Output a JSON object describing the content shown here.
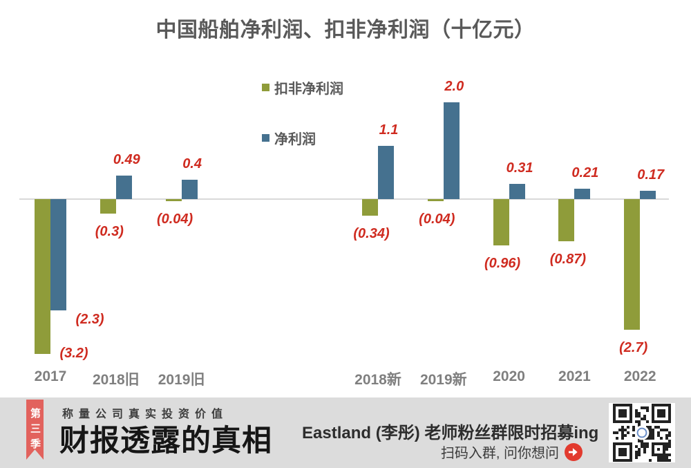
{
  "chart_data": {
    "type": "bar",
    "title": "中国船舶净利润、扣非净利润（十亿元）",
    "categories": [
      "2017",
      "2018旧",
      "2019旧",
      "2018新",
      "2019新",
      "2020",
      "2021",
      "2022"
    ],
    "slots": [
      0,
      1,
      2,
      5,
      6,
      7,
      8,
      9
    ],
    "series": [
      {
        "name": "扣非净利润",
        "color": "#8f9c3a",
        "values": [
          -3.2,
          -0.3,
          -0.04,
          -0.34,
          -0.04,
          -0.96,
          -0.87,
          -2.7
        ],
        "labels": [
          "(3.2)",
          "(0.3)",
          "(0.04)",
          "(0.34)",
          "(0.04)",
          "(0.96)",
          "(0.87)",
          "(2.7)"
        ]
      },
      {
        "name": "净利润",
        "color": "#45718f",
        "values": [
          -2.3,
          0.49,
          0.4,
          1.1,
          2.0,
          0.31,
          0.21,
          0.17
        ],
        "labels": [
          "(2.3)",
          "0.49",
          "0.4",
          "1.1",
          "2.0",
          "0.31",
          "0.21",
          "0.17"
        ]
      }
    ],
    "label_color": "#cf2b20",
    "axis_color": "#d9d9d9",
    "baseline": 0,
    "ylim": [
      -3.5,
      2.2
    ],
    "grid": false,
    "legend_position": "inside-left-middle"
  },
  "banner": {
    "ribbon_text": "第三季",
    "ribbon_color": "#e2625d",
    "tagline": "称量公司真实投资价值",
    "title": "财报透露的真相",
    "promo_line1": "Eastland (李彤) 老师粉丝群限时招募ing",
    "promo_line2": "扫码入群, 问你想问",
    "arrow_color": "#e23a2e"
  }
}
